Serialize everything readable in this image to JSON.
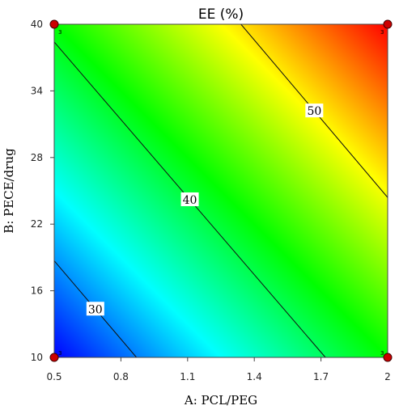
{
  "chart_data": {
    "type": "heatmap",
    "subtype": "contour",
    "title": "EE (%)",
    "xlabel": "A: PCL/PEG",
    "ylabel": "B: PECE/drug",
    "xlim": [
      0.5,
      2
    ],
    "ylim": [
      10,
      40
    ],
    "x_ticks": [
      "0.5",
      "0.8",
      "1.1",
      "1.4",
      "1.7",
      "2"
    ],
    "y_ticks": [
      "10",
      "16",
      "22",
      "28",
      "34",
      "40"
    ],
    "colormap": [
      "#0000ff",
      "#00ffff",
      "#00ff00",
      "#ffff00",
      "#ff0000"
    ],
    "value_range": [
      26,
      58
    ],
    "contours": [
      {
        "level": "30",
        "start": [
          0.5,
          18.7
        ],
        "end": [
          0.87,
          10
        ]
      },
      {
        "level": "40",
        "start": [
          0.5,
          38.4
        ],
        "end": [
          1.72,
          10
        ]
      },
      {
        "level": "50",
        "start": [
          1.34,
          40
        ],
        "end": [
          2.0,
          24.4
        ]
      }
    ],
    "design_points": [
      {
        "x": 0.5,
        "y": 10,
        "replicates": "3"
      },
      {
        "x": 0.5,
        "y": 40,
        "replicates": "3"
      },
      {
        "x": 2.0,
        "y": 10,
        "replicates": "3"
      },
      {
        "x": 2.0,
        "y": 40,
        "replicates": "3"
      }
    ]
  }
}
